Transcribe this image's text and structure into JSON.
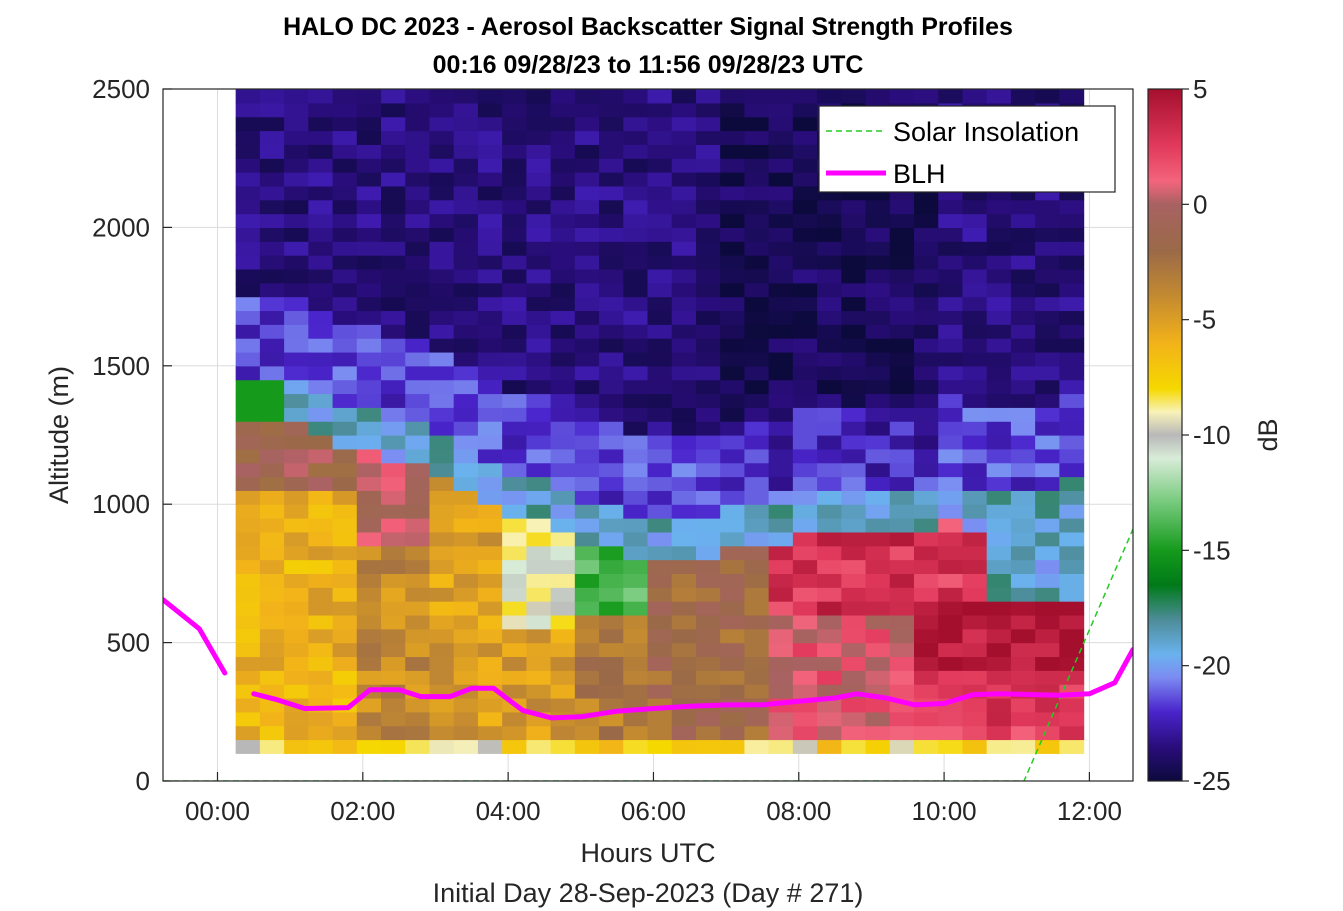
{
  "chart_data": {
    "type": "heatmap",
    "title": "HALO DC 2023 - Aerosol Backscatter Signal Strength Profiles",
    "subtitle": "00:16 09/28/23 to 11:56 09/28/23  UTC",
    "xlabel": "Hours UTC",
    "footer": "Initial Day 28-Sep-2023 (Day # 271)",
    "ylabel": "Altitude (m)",
    "colorbar_label": "dB",
    "xlim": [
      -0.75,
      12.6
    ],
    "ylim": [
      0,
      2500
    ],
    "x_ticks": [
      0,
      2,
      4,
      6,
      8,
      10,
      12
    ],
    "x_tick_labels": [
      "00:00",
      "02:00",
      "04:00",
      "06:00",
      "08:00",
      "10:00",
      "12:00"
    ],
    "y_ticks": [
      0,
      500,
      1000,
      1500,
      2000,
      2500
    ],
    "y_tick_labels": [
      "0",
      "500",
      "1000",
      "1500",
      "2000",
      "2500"
    ],
    "colorbar_ticks": [
      5,
      0,
      -5,
      -10,
      -15,
      -20,
      -25
    ],
    "colorbar_tick_labels": [
      "5",
      "0",
      "-5",
      "-10",
      "-15",
      "-20",
      "-25"
    ],
    "colorbar_range": [
      -25,
      5
    ],
    "grid": true,
    "legend_position": "top-right",
    "heatmap": {
      "x_start": 0.25,
      "x_end": 11.92,
      "y_start": 100,
      "y_end": 2500,
      "time_bins": 35,
      "altitude_bins": 48,
      "altitude_bin_size": 50,
      "unit": "dB"
    },
    "series": [
      {
        "name": "Solar Insolation",
        "style": "dashed",
        "color": "#22cc22",
        "x": [
          -0.75,
          11.1,
          12.6
        ],
        "y": [
          0,
          0,
          910
        ]
      },
      {
        "name": "BLH",
        "style": "solid",
        "color": "#ff00ff",
        "segments": [
          {
            "x": [
              -0.75,
              -0.25,
              0.1
            ],
            "y": [
              655,
              550,
              390
            ]
          },
          {
            "x": [
              0.5,
              0.8,
              1.2,
              1.8,
              2.1,
              2.5,
              2.8,
              3.2,
              3.5,
              3.8,
              4.2,
              4.6,
              5.0,
              5.5,
              6.0,
              6.5,
              7.0,
              7.5,
              8.0,
              8.5,
              8.8,
              9.2,
              9.6,
              10.0,
              10.4,
              10.8,
              11.2,
              11.6,
              12.0,
              12.35,
              12.6
            ],
            "y": [
              315,
              295,
              262,
              265,
              330,
              330,
              305,
              305,
              335,
              335,
              255,
              228,
              232,
              252,
              262,
              270,
              275,
              275,
              288,
              300,
              315,
              300,
              275,
              280,
              312,
              315,
              312,
              310,
              315,
              355,
              475
            ]
          }
        ]
      }
    ],
    "colormap": {
      "stops": [
        {
          "value": 5,
          "color": "#a50f2e"
        },
        {
          "value": 2.5,
          "color": "#e23a5c"
        },
        {
          "value": 1,
          "color": "#f3647c"
        },
        {
          "value": 0,
          "color": "#a86262"
        },
        {
          "value": -2,
          "color": "#9a6a48"
        },
        {
          "value": -4,
          "color": "#c48a30"
        },
        {
          "value": -6,
          "color": "#f2b21a"
        },
        {
          "value": -8,
          "color": "#f5d800"
        },
        {
          "value": -9,
          "color": "#f8f2b8"
        },
        {
          "value": -10,
          "color": "#b8b8b8"
        },
        {
          "value": -11,
          "color": "#d8ecd8"
        },
        {
          "value": -13,
          "color": "#72c878"
        },
        {
          "value": -15,
          "color": "#169a1c"
        },
        {
          "value": -16.5,
          "color": "#007a18"
        },
        {
          "value": -18,
          "color": "#4d8c98"
        },
        {
          "value": -19.5,
          "color": "#6ab2ee"
        },
        {
          "value": -20.5,
          "color": "#7c8cf2"
        },
        {
          "value": -22,
          "color": "#4a24cc"
        },
        {
          "value": -23.5,
          "color": "#2a0d7c"
        },
        {
          "value": -25,
          "color": "#0c0a3c"
        }
      ]
    }
  }
}
